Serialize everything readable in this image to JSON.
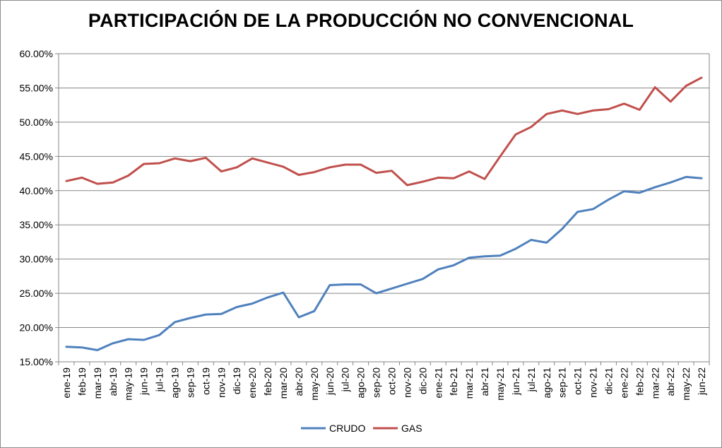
{
  "chart_data": {
    "type": "line",
    "title": "PARTICIPACIÓN DE LA PRODUCCIÓN NO CONVENCIONAL",
    "xlabel": "",
    "ylabel": "",
    "ylim": [
      0.15,
      0.6
    ],
    "y_ticks": [
      "15.00%",
      "20.00%",
      "25.00%",
      "30.00%",
      "35.00%",
      "40.00%",
      "45.00%",
      "50.00%",
      "55.00%",
      "60.00%"
    ],
    "y_tick_values": [
      0.15,
      0.2,
      0.25,
      0.3,
      0.35,
      0.4,
      0.45,
      0.5,
      0.55,
      0.6
    ],
    "grid": "horizontal",
    "legend_position": "bottom",
    "categories": [
      "ene-19",
      "feb-19",
      "mar-19",
      "abr-19",
      "may-19",
      "jun-19",
      "jul-19",
      "ago-19",
      "sep-19",
      "oct-19",
      "nov-19",
      "dic-19",
      "ene-20",
      "feb-20",
      "mar-20",
      "abr-20",
      "may-20",
      "jun-20",
      "jul-20",
      "ago-20",
      "sep-20",
      "oct-20",
      "nov-20",
      "dic-20",
      "ene-21",
      "feb-21",
      "mar-21",
      "abr-21",
      "may-21",
      "jun-21",
      "jul-21",
      "ago-21",
      "sep-21",
      "oct-21",
      "nov-21",
      "dic-21",
      "ene-22",
      "feb-22",
      "mar-22",
      "abr-22",
      "may-22",
      "jun-22"
    ],
    "series": [
      {
        "name": "CRUDO",
        "color": "#4f81bd",
        "values": [
          0.172,
          0.171,
          0.167,
          0.177,
          0.183,
          0.182,
          0.189,
          0.208,
          0.214,
          0.219,
          0.22,
          0.23,
          0.235,
          0.244,
          0.251,
          0.215,
          0.224,
          0.262,
          0.263,
          0.263,
          0.25,
          0.257,
          0.264,
          0.271,
          0.285,
          0.291,
          0.302,
          0.304,
          0.305,
          0.315,
          0.328,
          0.324,
          0.344,
          0.369,
          0.373,
          0.387,
          0.399,
          0.397,
          0.405,
          0.412,
          0.42,
          0.418
        ]
      },
      {
        "name": "GAS",
        "color": "#c0504d",
        "values": [
          0.414,
          0.419,
          0.41,
          0.412,
          0.422,
          0.439,
          0.44,
          0.447,
          0.443,
          0.448,
          0.428,
          0.434,
          0.447,
          0.441,
          0.435,
          0.423,
          0.427,
          0.434,
          0.438,
          0.438,
          0.426,
          0.429,
          0.408,
          0.413,
          0.419,
          0.418,
          0.428,
          0.417,
          0.45,
          0.482,
          0.493,
          0.512,
          0.517,
          0.512,
          0.517,
          0.519,
          0.527,
          0.518,
          0.551,
          0.53,
          0.553,
          0.565
        ]
      }
    ]
  }
}
